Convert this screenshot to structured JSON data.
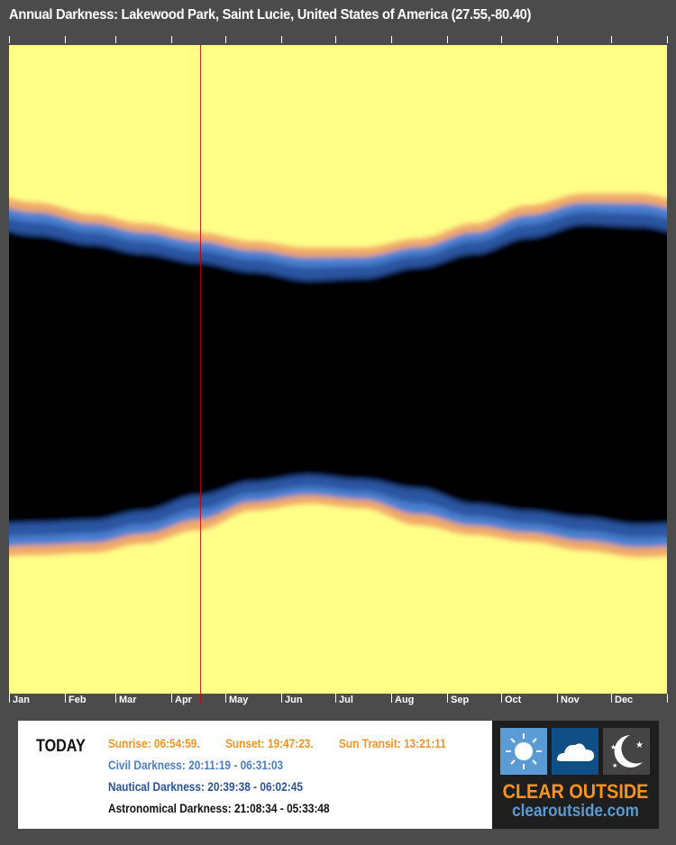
{
  "chart_data": {
    "type": "heatmap",
    "title": "Annual Darkness: Lakewood Park, Saint Lucie, United States of America (27.55,-80.40)",
    "x_tick_labels": [
      "Jan",
      "Feb",
      "Mar",
      "Apr",
      "May",
      "Jun",
      "Jul",
      "Aug",
      "Sep",
      "Oct",
      "Nov",
      "Dec"
    ],
    "y_range_hours": [
      "12:00",
      "12:00 next day"
    ],
    "sample_day_of_year": [
      15,
      46,
      74,
      105,
      135,
      166,
      196,
      227,
      258,
      288,
      319,
      349
    ],
    "sunset": [
      "17:50",
      "18:16",
      "18:36",
      "18:56",
      "19:16",
      "19:30",
      "19:30",
      "19:10",
      "18:36",
      "17:56",
      "17:30",
      "17:30"
    ],
    "astronomical_dusk_end": [
      "19:10",
      "19:30",
      "19:50",
      "20:10",
      "20:30",
      "20:50",
      "20:45",
      "20:20",
      "19:50",
      "19:15",
      "18:45",
      "18:50"
    ],
    "astronomical_dawn_start": [
      "05:40",
      "05:35",
      "05:15",
      "04:40",
      "04:10",
      "03:55",
      "04:05",
      "04:25",
      "05:00",
      "05:15",
      "05:30",
      "05:45"
    ],
    "sunrise": [
      "07:00",
      "06:55",
      "06:35",
      "06:05",
      "05:20",
      "05:05",
      "05:15",
      "05:55",
      "06:15",
      "06:30",
      "06:50",
      "07:05"
    ],
    "today_day_of_year": 106,
    "colors": {
      "daylight": "#ffff88",
      "sun_edge": "#f0a868",
      "civil": "#4a7fd0",
      "nautical": "#2a55a0",
      "astronomical": "#000000",
      "today_line": "#c00000"
    }
  },
  "today": {
    "label": "TODAY",
    "sunrise": "Sunrise: 06:54:59.",
    "sunset": "Sunset: 19:47:23.",
    "transit": "Sun Transit: 13:21:11",
    "civil": "Civil Darkness: 20:11:19 - 06:31:03",
    "nautical": "Nautical Darkness: 20:39:38 - 06:02:45",
    "astro": "Astronomical Darkness: 21:08:34 - 05:33:48"
  },
  "logo": {
    "name": "CLEAR OUTSIDE",
    "url": "clearoutside.com",
    "icons": [
      "sun-icon",
      "cloud-icon",
      "moon-stars-icon"
    ]
  }
}
